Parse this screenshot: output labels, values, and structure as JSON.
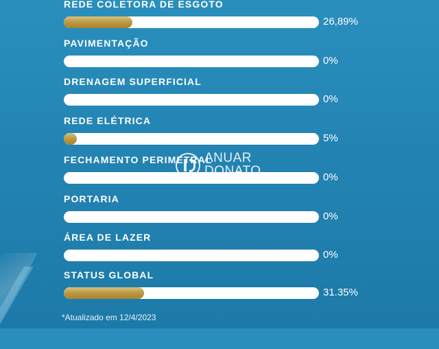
{
  "items": [
    {
      "label": "REDE COLETORA DE ESGOTO",
      "percent_text": "26,89%",
      "progress": 0.2689
    },
    {
      "label": "PAVIMENTAÇÃO",
      "percent_text": "0%",
      "progress": 0
    },
    {
      "label": "DRENAGEM SUPERFICIAL",
      "percent_text": "0%",
      "progress": 0
    },
    {
      "label": "REDE ELÉTRICA",
      "percent_text": "5%",
      "progress": 0.05
    },
    {
      "label": "FECHAMENTO PERIMETRAL",
      "percent_text": "0%",
      "progress": 0
    },
    {
      "label": "PORTARIA",
      "percent_text": "0%",
      "progress": 0
    },
    {
      "label": "ÁREA DE LAZER",
      "percent_text": "0%",
      "progress": 0
    },
    {
      "label": "STATUS GLOBAL",
      "percent_text": "31.35%",
      "progress": 0.3135
    }
  ],
  "footnote": "*Atualizado em 12/4/2023",
  "watermark": {
    "line1": "ANUAR",
    "line2": "DONATO"
  },
  "colors": {
    "background": "#2384b3",
    "track": "#ffffff",
    "fill": "#b8953e",
    "text": "#ffffff"
  }
}
